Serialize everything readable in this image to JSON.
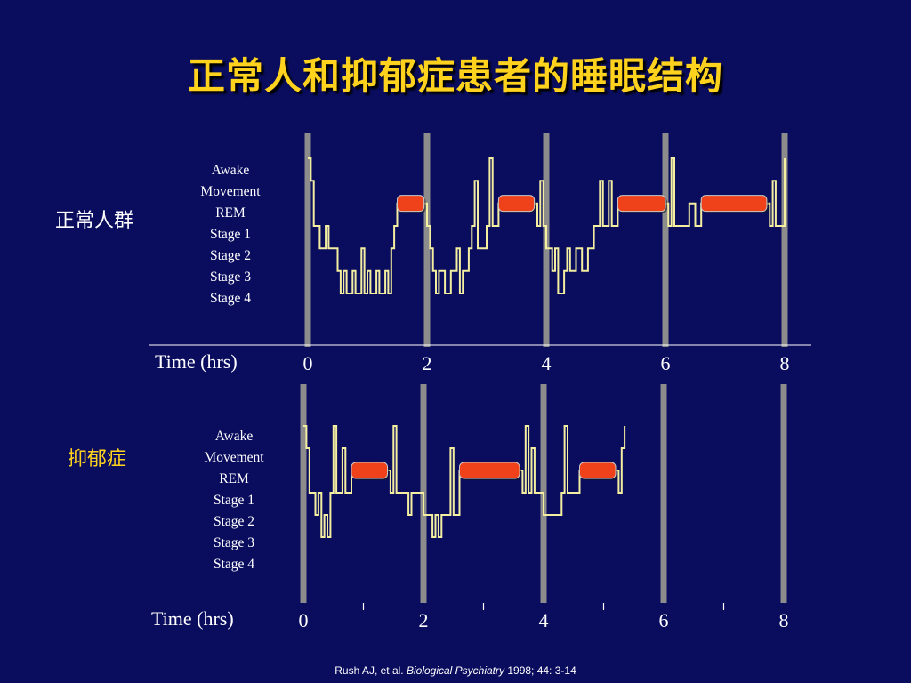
{
  "title": "正常人和抑郁症患者的睡眠结构",
  "citation": {
    "authors": "Rush AJ, et al. ",
    "journal": "Biological  Psychiatry",
    "details": " 1998; 44: 3-14"
  },
  "colors": {
    "background": "#0a0d5e",
    "title": "#ffd21e",
    "trace": "#f4efa0",
    "rem_block": "#f0421a",
    "hour_line": "#8c8c8c"
  },
  "chart_data": [
    {
      "type": "line",
      "group_label": "正常人群",
      "y_categories": [
        "Awake",
        "Movement",
        "REM",
        "Stage 1",
        "Stage 2",
        "Stage 3",
        "Stage 4"
      ],
      "xlabel": "Time (hrs)",
      "x_ticks": [
        "0",
        "2",
        "4",
        "6",
        "8"
      ],
      "xlim": [
        0,
        8
      ],
      "rem_periods": [
        [
          1.5,
          1.95
        ],
        [
          3.2,
          3.8
        ],
        [
          5.2,
          6.0
        ],
        [
          6.6,
          7.7
        ]
      ],
      "hypnogram": [
        [
          0.0,
          0
        ],
        [
          0.05,
          0
        ],
        [
          0.05,
          1
        ],
        [
          0.1,
          1
        ],
        [
          0.1,
          3
        ],
        [
          0.2,
          4
        ],
        [
          0.3,
          3
        ],
        [
          0.35,
          4
        ],
        [
          0.45,
          4
        ],
        [
          0.5,
          5
        ],
        [
          0.55,
          6
        ],
        [
          0.6,
          5
        ],
        [
          0.65,
          6
        ],
        [
          0.75,
          5
        ],
        [
          0.8,
          6
        ],
        [
          0.9,
          4
        ],
        [
          0.95,
          6
        ],
        [
          1.0,
          5
        ],
        [
          1.05,
          6
        ],
        [
          1.15,
          5
        ],
        [
          1.2,
          6
        ],
        [
          1.3,
          5
        ],
        [
          1.35,
          6
        ],
        [
          1.4,
          4
        ],
        [
          1.45,
          3
        ],
        [
          1.5,
          2
        ],
        [
          1.95,
          2
        ],
        [
          2.0,
          3
        ],
        [
          2.05,
          4
        ],
        [
          2.1,
          5
        ],
        [
          2.15,
          6
        ],
        [
          2.2,
          5
        ],
        [
          2.3,
          6
        ],
        [
          2.4,
          5
        ],
        [
          2.5,
          4
        ],
        [
          2.55,
          6
        ],
        [
          2.6,
          5
        ],
        [
          2.7,
          4
        ],
        [
          2.75,
          3
        ],
        [
          2.8,
          1
        ],
        [
          2.85,
          4
        ],
        [
          3.0,
          3
        ],
        [
          3.05,
          0
        ],
        [
          3.1,
          3
        ],
        [
          3.2,
          2
        ],
        [
          3.8,
          2
        ],
        [
          3.85,
          3
        ],
        [
          3.9,
          1
        ],
        [
          3.95,
          3
        ],
        [
          4.0,
          4
        ],
        [
          4.1,
          5
        ],
        [
          4.15,
          4
        ],
        [
          4.2,
          6
        ],
        [
          4.3,
          5
        ],
        [
          4.35,
          4
        ],
        [
          4.4,
          5
        ],
        [
          4.5,
          4
        ],
        [
          4.6,
          5
        ],
        [
          4.7,
          4
        ],
        [
          4.8,
          3
        ],
        [
          4.9,
          1
        ],
        [
          4.95,
          3
        ],
        [
          5.0,
          3
        ],
        [
          5.05,
          1
        ],
        [
          5.1,
          3
        ],
        [
          5.2,
          2
        ],
        [
          6.0,
          2
        ],
        [
          6.05,
          3
        ],
        [
          6.1,
          0
        ],
        [
          6.15,
          3
        ],
        [
          6.3,
          3
        ],
        [
          6.4,
          2
        ],
        [
          6.5,
          3
        ],
        [
          6.6,
          2
        ],
        [
          7.7,
          2
        ],
        [
          7.75,
          3
        ],
        [
          7.8,
          1
        ],
        [
          7.85,
          3
        ],
        [
          7.95,
          3
        ],
        [
          8.0,
          0
        ]
      ]
    },
    {
      "type": "line",
      "group_label": "抑郁症",
      "y_categories": [
        "Awake",
        "Movement",
        "REM",
        "Stage 1",
        "Stage 2",
        "Stage 3",
        "Stage 4"
      ],
      "xlabel": "Time (hrs)",
      "x_ticks": [
        "0",
        "2",
        "4",
        "6",
        "8"
      ],
      "xlim": [
        0,
        8
      ],
      "rem_periods": [
        [
          0.8,
          1.4
        ],
        [
          2.6,
          3.6
        ],
        [
          4.6,
          5.2
        ]
      ],
      "hypnogram": [
        [
          0.0,
          0
        ],
        [
          0.05,
          1
        ],
        [
          0.1,
          3
        ],
        [
          0.15,
          3
        ],
        [
          0.2,
          4
        ],
        [
          0.25,
          3
        ],
        [
          0.3,
          5
        ],
        [
          0.35,
          4
        ],
        [
          0.4,
          5
        ],
        [
          0.45,
          3
        ],
        [
          0.5,
          0
        ],
        [
          0.55,
          3
        ],
        [
          0.6,
          3
        ],
        [
          0.65,
          1
        ],
        [
          0.7,
          3
        ],
        [
          0.8,
          2
        ],
        [
          1.4,
          2
        ],
        [
          1.45,
          3
        ],
        [
          1.5,
          0
        ],
        [
          1.55,
          3
        ],
        [
          1.7,
          3
        ],
        [
          1.75,
          4
        ],
        [
          1.8,
          3
        ],
        [
          1.9,
          3
        ],
        [
          2.0,
          4
        ],
        [
          2.1,
          4
        ],
        [
          2.15,
          5
        ],
        [
          2.2,
          4
        ],
        [
          2.25,
          5
        ],
        [
          2.3,
          4
        ],
        [
          2.4,
          4
        ],
        [
          2.45,
          1
        ],
        [
          2.5,
          4
        ],
        [
          2.6,
          2
        ],
        [
          3.6,
          2
        ],
        [
          3.65,
          3
        ],
        [
          3.7,
          0
        ],
        [
          3.75,
          3
        ],
        [
          3.8,
          1
        ],
        [
          3.85,
          3
        ],
        [
          4.0,
          4
        ],
        [
          4.2,
          4
        ],
        [
          4.3,
          3
        ],
        [
          4.35,
          0
        ],
        [
          4.4,
          3
        ],
        [
          4.5,
          3
        ],
        [
          4.6,
          2
        ],
        [
          5.2,
          2
        ],
        [
          5.25,
          3
        ],
        [
          5.3,
          1
        ],
        [
          5.35,
          0
        ],
        [
          5.35,
          1
        ]
      ]
    }
  ]
}
